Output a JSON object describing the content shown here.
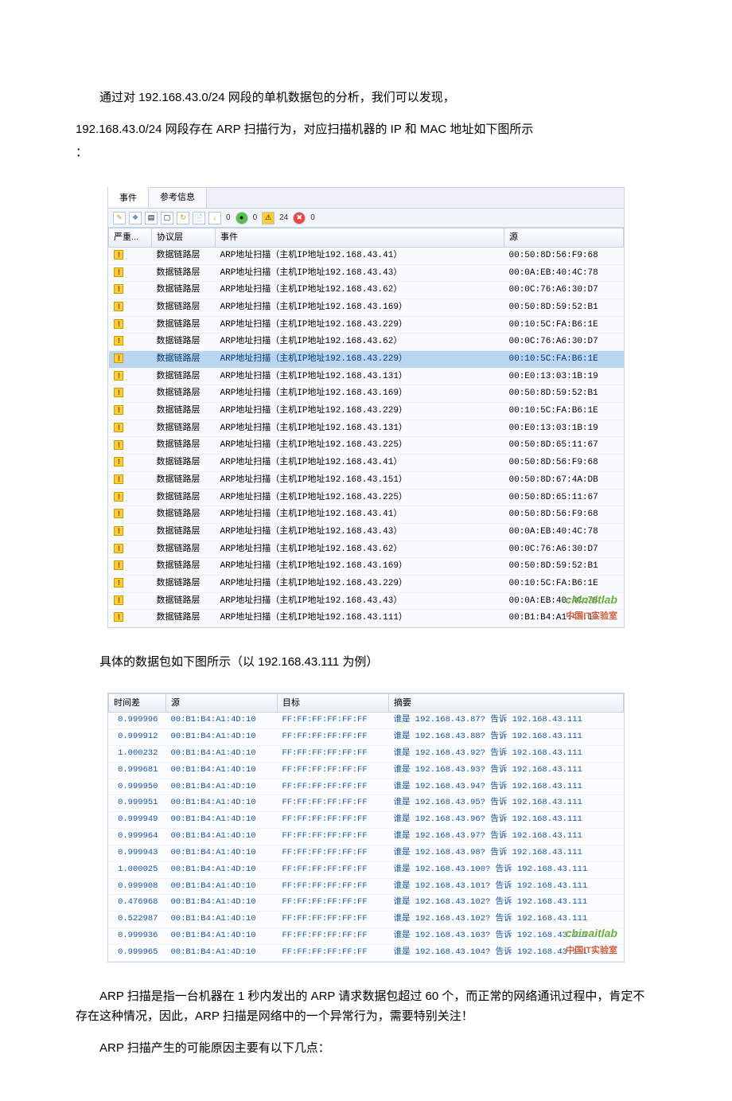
{
  "text": {
    "p1a": "通过对 192.168.43.0/24 网段的单机数据包的分析，我们可以发现，",
    "p1b": "192.168.43.0/24 网段存在 ARP 扫描行为，对应扫描机器的 IP 和 MAC 地址如下图所示",
    "p1c": "：",
    "p2": "具体的数据包如下图所示（以 192.168.43.111 为例）",
    "p3": "ARP 扫描是指一台机器在 1 秒内发出的 ARP 请求数据包超过 60 个，而正常的网络通讯过程中，肯定不存在这种情况，因此，ARP 扫描是网络中的一个异常行为，需要特别关注！",
    "p4": "ARP 扫描产生的可能原因主要有以下几点："
  },
  "events_panel": {
    "tabs": [
      "事件",
      "参考信息"
    ],
    "active_tab": 0,
    "toolbar_counts": [
      "0",
      "0",
      "24",
      "0"
    ],
    "headers": [
      "严重...",
      "协议层",
      "事件",
      "源"
    ],
    "proto_label": "数据链路层",
    "selected_row": 6,
    "rows": [
      {
        "ip": "192.168.43.41",
        "mac": "00:50:8D:56:F9:68"
      },
      {
        "ip": "192.168.43.43",
        "mac": "00:0A:EB:40:4C:78"
      },
      {
        "ip": "192.168.43.62",
        "mac": "00:0C:76:A6:30:D7"
      },
      {
        "ip": "192.168.43.169",
        "mac": "00:50:8D:59:52:B1"
      },
      {
        "ip": "192.168.43.229",
        "mac": "00:10:5C:FA:B6:1E"
      },
      {
        "ip": "192.168.43.62",
        "mac": "00:0C:76:A6:30:D7"
      },
      {
        "ip": "192.168.43.229",
        "mac": "00:10:5C:FA:B6:1E"
      },
      {
        "ip": "192.168.43.131",
        "mac": "00:E0:13:03:1B:19"
      },
      {
        "ip": "192.168.43.169",
        "mac": "00:50:8D:59:52:B1"
      },
      {
        "ip": "192.168.43.229",
        "mac": "00:10:5C:FA:B6:1E"
      },
      {
        "ip": "192.168.43.131",
        "mac": "00:E0:13:03:1B:19"
      },
      {
        "ip": "192.168.43.225",
        "mac": "00:50:8D:65:11:67"
      },
      {
        "ip": "192.168.43.41",
        "mac": "00:50:8D:56:F9:68"
      },
      {
        "ip": "192.168.43.151",
        "mac": "00:50:8D:67:4A:DB"
      },
      {
        "ip": "192.168.43.225",
        "mac": "00:50:8D:65:11:67"
      },
      {
        "ip": "192.168.43.41",
        "mac": "00:50:8D:56:F9:68"
      },
      {
        "ip": "192.168.43.43",
        "mac": "00:0A:EB:40:4C:78"
      },
      {
        "ip": "192.168.43.62",
        "mac": "00:0C:76:A6:30:D7"
      },
      {
        "ip": "192.168.43.169",
        "mac": "00:50:8D:59:52:B1"
      },
      {
        "ip": "192.168.43.229",
        "mac": "00:10:5C:FA:B6:1E"
      },
      {
        "ip": "192.168.43.43",
        "mac": "00:0A:EB:40:4C:78"
      },
      {
        "ip": "192.168.43.111",
        "mac": "00:B1:B4:A1:4D:10"
      }
    ],
    "event_prefix": "ARP地址扫描（主机IP地址",
    "event_suffix": "）",
    "watermark": "chinaitlab",
    "watermark_cn": "中国IT实验室"
  },
  "packets_panel": {
    "headers": [
      "时间差",
      "源",
      "目标",
      "摘要"
    ],
    "src_mac": "00:B1:B4:A1:4D:10",
    "dst_mac": "FF:FF:FF:FF:FF:FF",
    "tell_ip": "192.168.43.111",
    "summary_prefix": "谁是 ",
    "summary_mid": "? 告诉 ",
    "rows": [
      {
        "td": "0.999996",
        "ask": "192.168.43.87"
      },
      {
        "td": "0.999912",
        "ask": "192.168.43.88"
      },
      {
        "td": "1.000232",
        "ask": "192.168.43.92"
      },
      {
        "td": "0.999681",
        "ask": "192.168.43.93"
      },
      {
        "td": "0.999950",
        "ask": "192.168.43.94"
      },
      {
        "td": "0.999951",
        "ask": "192.168.43.95"
      },
      {
        "td": "0.999949",
        "ask": "192.168.43.96"
      },
      {
        "td": "0.999964",
        "ask": "192.168.43.97"
      },
      {
        "td": "0.999943",
        "ask": "192.168.43.98"
      },
      {
        "td": "1.000025",
        "ask": "192.168.43.100"
      },
      {
        "td": "0.999908",
        "ask": "192.168.43.101"
      },
      {
        "td": "0.476968",
        "ask": "192.168.43.102"
      },
      {
        "td": "0.522987",
        "ask": "192.168.43.102"
      },
      {
        "td": "0.999936",
        "ask": "192.168.43.103"
      },
      {
        "td": "0.999965",
        "ask": "192.168.43.104"
      }
    ],
    "watermark": "chinaitlab",
    "watermark_cn": "中国IT实验室"
  },
  "colors": {
    "body_bg": "#ffffff",
    "text": "#000000",
    "panel_border": "#c9d4e3",
    "panel_bg": "#f9fbfd",
    "header_grad_top": "#fdfefe",
    "header_grad_bot": "#e8eef6",
    "row_sel_bg": "#b9d5f0",
    "packet_text": "#1855a3",
    "summary_text": "#c65a10",
    "watermark_green": "#6aaf3e",
    "watermark_red": "#d0603f"
  }
}
